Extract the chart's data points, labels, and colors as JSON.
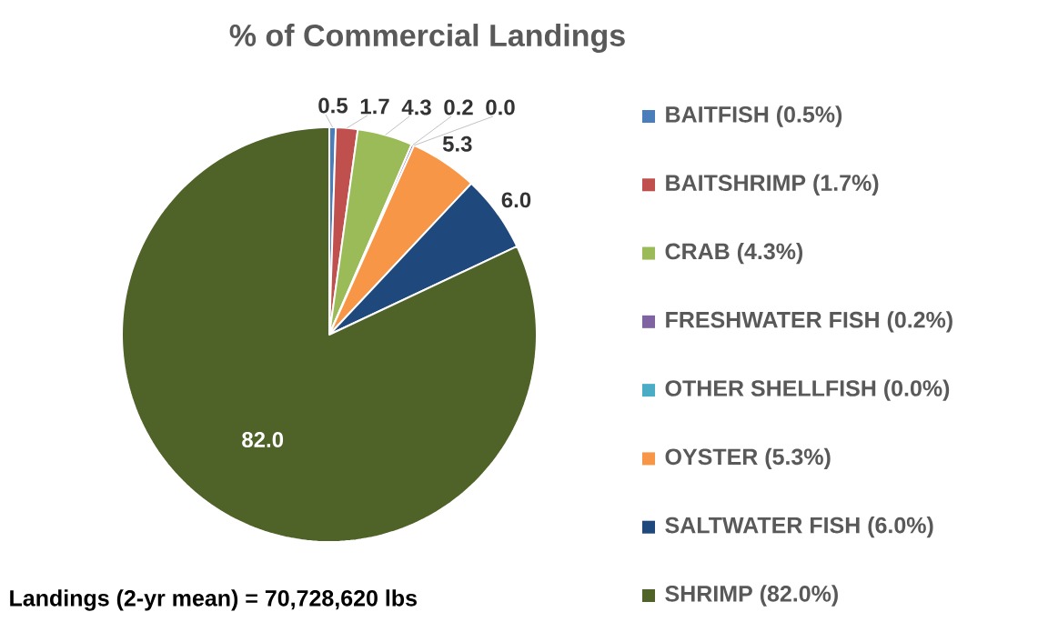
{
  "chart_data": {
    "type": "pie",
    "title": "% of Commercial Landings",
    "categories": [
      "BAITFISH (0.5%)",
      "BAITSHRIMP (1.7%)",
      "CRAB (4.3%)",
      "FRESHWATER FISH (0.2%)",
      "OTHER SHELLFISH (0.0%)",
      "OYSTER (5.3%)",
      "SALTWATER FISH (6.0%)",
      "SHRIMP (82.0%)"
    ],
    "values": [
      0.5,
      1.7,
      4.3,
      0.2,
      0.0,
      5.3,
      6.0,
      82.0
    ],
    "colors": [
      "#4a7ebb",
      "#c0504d",
      "#9bbb59",
      "#8064a2",
      "#4bacc6",
      "#f79646",
      "#1f497d",
      "#4f6228"
    ],
    "value_labels": [
      "0.5",
      "1.7",
      "4.3",
      "0.2",
      "0.0",
      "5.3",
      "6.0",
      "82.0"
    ],
    "legend": "right",
    "annotations": [
      "Landings (2-yr mean) = 70,728,620 lbs"
    ]
  }
}
